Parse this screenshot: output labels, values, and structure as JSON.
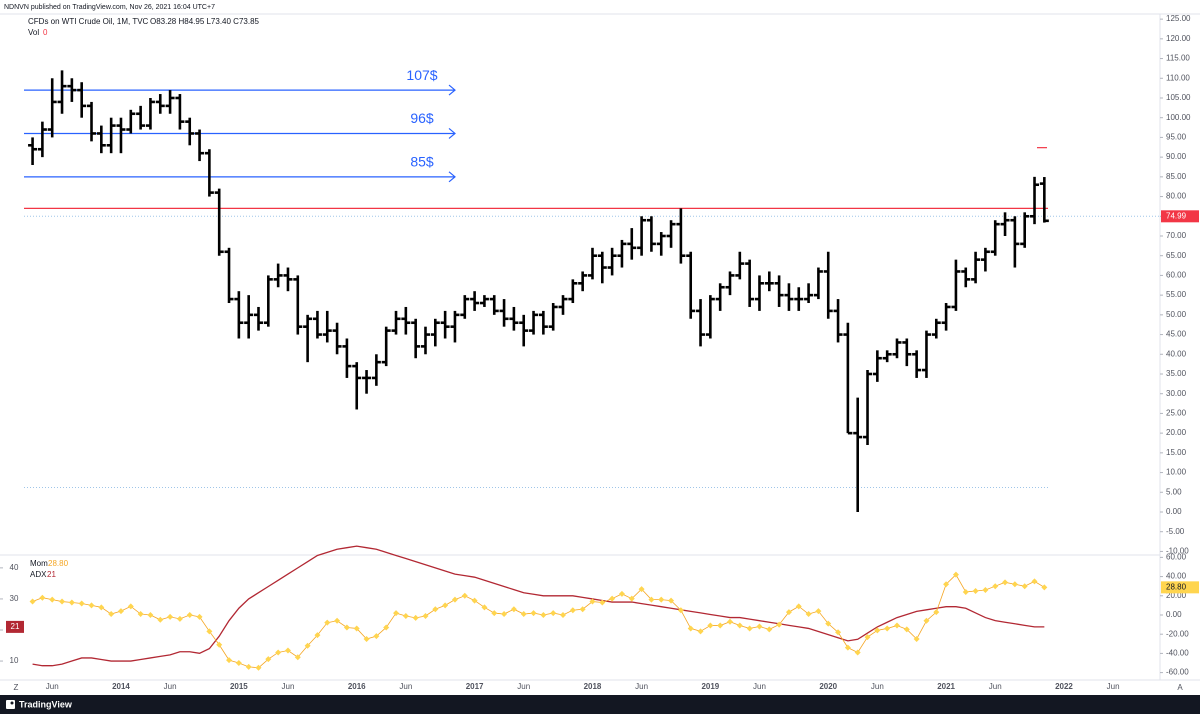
{
  "header": {
    "published": "NDNVN published on TradingView.com, Nov 26, 2021 16:04 UTC+7",
    "footer": "TradingView",
    "corner_left": "Z",
    "corner_right": "A"
  },
  "chart_data": [
    {
      "type": "ohlc",
      "title": "CFDs on WTI Crude Oil, 1M, TVC",
      "ohlc_readout": "O83.28 H84.95 L73.40 C73.85",
      "volume_label": "Vol",
      "volume_value": 0,
      "color": "#000000",
      "x": [
        "2013-04",
        "2013-05",
        "2013-06",
        "2013-07",
        "2013-08",
        "2013-09",
        "2013-10",
        "2013-11",
        "2013-12",
        "2014-01",
        "2014-02",
        "2014-03",
        "2014-04",
        "2014-05",
        "2014-06",
        "2014-07",
        "2014-08",
        "2014-09",
        "2014-10",
        "2014-11",
        "2014-12",
        "2015-01",
        "2015-02",
        "2015-03",
        "2015-04",
        "2015-05",
        "2015-06",
        "2015-07",
        "2015-08",
        "2015-09",
        "2015-10",
        "2015-11",
        "2015-12",
        "2016-01",
        "2016-02",
        "2016-03",
        "2016-04",
        "2016-05",
        "2016-06",
        "2016-07",
        "2016-08",
        "2016-09",
        "2016-10",
        "2016-11",
        "2016-12",
        "2017-01",
        "2017-02",
        "2017-03",
        "2017-04",
        "2017-05",
        "2017-06",
        "2017-07",
        "2017-08",
        "2017-09",
        "2017-10",
        "2017-11",
        "2017-12",
        "2018-01",
        "2018-02",
        "2018-03",
        "2018-04",
        "2018-05",
        "2018-06",
        "2018-07",
        "2018-08",
        "2018-09",
        "2018-10",
        "2018-11",
        "2018-12",
        "2019-01",
        "2019-02",
        "2019-03",
        "2019-04",
        "2019-05",
        "2019-06",
        "2019-07",
        "2019-08",
        "2019-09",
        "2019-10",
        "2019-11",
        "2019-12",
        "2020-01",
        "2020-02",
        "2020-03",
        "2020-04",
        "2020-05",
        "2020-06",
        "2020-07",
        "2020-08",
        "2020-09",
        "2020-10",
        "2020-11",
        "2020-12",
        "2021-01",
        "2021-02",
        "2021-03",
        "2021-04",
        "2021-05",
        "2021-06",
        "2021-07",
        "2021-08",
        "2021-09",
        "2021-10",
        "2021-11"
      ],
      "open": [
        93,
        92,
        97,
        104,
        108,
        107,
        103,
        96,
        93,
        98,
        97,
        101,
        98,
        104,
        103,
        105,
        99,
        96,
        91,
        81,
        66,
        54,
        48,
        50,
        48,
        59,
        60,
        59,
        47,
        49,
        45,
        46,
        42,
        37,
        34,
        34,
        38,
        46,
        49,
        48,
        42,
        45,
        48,
        47,
        50,
        54,
        53,
        54,
        51,
        49,
        48,
        46,
        50,
        47,
        52,
        54,
        58,
        60,
        65,
        62,
        65,
        68,
        67,
        74,
        68,
        70,
        73,
        65,
        51,
        45,
        54,
        57,
        60,
        63,
        54,
        58,
        58,
        55,
        54,
        54,
        55,
        61,
        51,
        45,
        20,
        19,
        35,
        39,
        40,
        43,
        40,
        36,
        45,
        48,
        52,
        61,
        59,
        64,
        66,
        73,
        74,
        68,
        75,
        83.28
      ],
      "high": [
        95,
        99,
        110,
        112,
        110,
        109,
        104,
        98,
        100,
        100,
        102,
        103,
        105,
        106,
        107,
        106,
        100,
        97,
        92,
        82,
        67,
        56,
        55,
        52,
        60,
        63,
        62,
        60,
        50,
        51,
        51,
        48,
        44,
        38,
        36,
        40,
        47,
        51,
        52,
        49,
        47,
        49,
        51,
        51,
        55,
        56,
        55,
        55,
        54,
        52,
        50,
        51,
        51,
        53,
        55,
        59,
        61,
        67,
        66,
        67,
        69,
        72,
        75,
        75,
        71,
        74,
        77,
        66,
        54,
        55,
        58,
        61,
        66,
        64,
        60,
        61,
        60,
        58,
        57,
        58,
        62,
        66,
        54,
        48,
        29,
        36,
        41,
        41,
        44,
        44,
        41,
        46,
        49,
        53,
        64,
        62,
        66,
        67,
        74,
        76,
        75,
        76,
        85,
        84.95
      ],
      "low": [
        88,
        90,
        95,
        101,
        104,
        100,
        94,
        91,
        91,
        91,
        96,
        97,
        97,
        101,
        101,
        97,
        93,
        89,
        80,
        65,
        53,
        44,
        44,
        46,
        47,
        57,
        56,
        45,
        38,
        44,
        43,
        40,
        34,
        26,
        30,
        32,
        37,
        45,
        45,
        39,
        40,
        42,
        44,
        43,
        49,
        51,
        52,
        50,
        47,
        46,
        42,
        45,
        45,
        46,
        50,
        53,
        56,
        59,
        58,
        60,
        62,
        64,
        65,
        66,
        65,
        67,
        63,
        49,
        42,
        44,
        51,
        55,
        59,
        52,
        51,
        56,
        52,
        51,
        51,
        53,
        54,
        49,
        43,
        20,
        0,
        17,
        33,
        38,
        39,
        37,
        34,
        34,
        44,
        46,
        51,
        57,
        58,
        61,
        65,
        70,
        62,
        67,
        73,
        73.4
      ],
      "close": [
        92,
        97,
        104,
        108,
        107,
        103,
        96,
        93,
        98,
        97,
        101,
        98,
        104,
        103,
        105,
        99,
        96,
        91,
        81,
        66,
        54,
        48,
        50,
        48,
        59,
        60,
        59,
        47,
        49,
        45,
        46,
        42,
        37,
        34,
        34,
        38,
        46,
        49,
        48,
        42,
        45,
        48,
        47,
        50,
        54,
        53,
        54,
        51,
        49,
        48,
        46,
        50,
        47,
        52,
        54,
        58,
        60,
        65,
        62,
        65,
        68,
        67,
        74,
        68,
        70,
        73,
        65,
        51,
        45,
        54,
        57,
        60,
        63,
        54,
        58,
        58,
        55,
        54,
        54,
        55,
        61,
        51,
        45,
        20,
        19,
        35,
        39,
        40,
        43,
        40,
        36,
        45,
        48,
        52,
        61,
        59,
        64,
        66,
        73,
        74,
        68,
        75,
        83,
        73.85
      ],
      "ylim": [
        -10.4,
        126.3
      ],
      "yticks": [
        {
          "value": 125,
          "label": "125.00"
        },
        {
          "value": 120,
          "label": "120.00"
        },
        {
          "value": 115,
          "label": "115.00"
        },
        {
          "value": 110,
          "label": "110.00"
        },
        {
          "value": 105,
          "label": "105.00"
        },
        {
          "value": 100,
          "label": "100.00"
        },
        {
          "value": 95,
          "label": "95.00"
        },
        {
          "value": 90,
          "label": "90.00"
        },
        {
          "value": 85,
          "label": "85.00"
        },
        {
          "value": 80,
          "label": "80.00"
        },
        {
          "value": 75,
          "label": "75.00"
        },
        {
          "value": 70,
          "label": "70.00"
        },
        {
          "value": 65,
          "label": "65.00"
        },
        {
          "value": 60,
          "label": "60.00"
        },
        {
          "value": 55,
          "label": "55.00"
        },
        {
          "value": 50,
          "label": "50.00"
        },
        {
          "value": 45,
          "label": "45.00"
        },
        {
          "value": 40,
          "label": "40.00"
        },
        {
          "value": 35,
          "label": "35.00"
        },
        {
          "value": 30,
          "label": "30.00"
        },
        {
          "value": 25,
          "label": "25.00"
        },
        {
          "value": 20,
          "label": "20.00"
        },
        {
          "value": 15,
          "label": "15.00"
        },
        {
          "value": 10,
          "label": "10.00"
        },
        {
          "value": 5,
          "label": "5.00"
        },
        {
          "value": 0,
          "label": "0.00"
        },
        {
          "value": -5,
          "label": "-5.00"
        },
        {
          "value": -10,
          "label": "-10.00"
        }
      ],
      "xticks": [
        {
          "value": "2013-06",
          "label": "Jun"
        },
        {
          "value": "2014-01",
          "label": "2014"
        },
        {
          "value": "2014-06",
          "label": "Jun"
        },
        {
          "value": "2015-01",
          "label": "2015"
        },
        {
          "value": "2015-06",
          "label": "Jun"
        },
        {
          "value": "2016-01",
          "label": "2016"
        },
        {
          "value": "2016-06",
          "label": "Jun"
        },
        {
          "value": "2017-01",
          "label": "2017"
        },
        {
          "value": "2017-06",
          "label": "Jun"
        },
        {
          "value": "2018-01",
          "label": "2018"
        },
        {
          "value": "2018-06",
          "label": "Jun"
        },
        {
          "value": "2019-01",
          "label": "2019"
        },
        {
          "value": "2019-06",
          "label": "Jun"
        },
        {
          "value": "2020-01",
          "label": "2020"
        },
        {
          "value": "2020-06",
          "label": "Jun"
        },
        {
          "value": "2021-01",
          "label": "2021"
        },
        {
          "value": "2021-06",
          "label": "Jun"
        },
        {
          "value": "2022-01",
          "label": "2022"
        },
        {
          "value": "2022-06",
          "label": "Jun"
        }
      ],
      "hlines": [
        {
          "value": 107,
          "label": "107$",
          "color": "#2962ff"
        },
        {
          "value": 96,
          "label": "96$",
          "color": "#2962ff"
        },
        {
          "value": 85,
          "label": "85$",
          "color": "#2962ff"
        }
      ],
      "resistance": {
        "value": 77,
        "color": "#f23645"
      },
      "last_price": 74.99,
      "last_price_color": "#f23645",
      "dotted_lines": [
        6.2
      ],
      "marker": {
        "value": 92.4,
        "color": "#f23645"
      }
    },
    {
      "type": "line",
      "series": [
        {
          "name": "Mom",
          "color": "#f5a623",
          "axis": "y2",
          "last_label": "28.80",
          "values": [
            14,
            18,
            16,
            14,
            13,
            12,
            10,
            8,
            1,
            4,
            9,
            1,
            0,
            -5,
            -2,
            -4,
            0,
            -2,
            -17,
            -31,
            -47,
            -50,
            -54,
            -55,
            -46,
            -39,
            -37,
            -44,
            -32,
            -21,
            -8,
            -6,
            -13,
            -14,
            -25,
            -22,
            -13,
            2,
            -1,
            -3,
            -1,
            6,
            10,
            16,
            20,
            15,
            8,
            2,
            1,
            6,
            1,
            2,
            0,
            2,
            0,
            5,
            6,
            14,
            13,
            17,
            22,
            17,
            27,
            16,
            16,
            15,
            5,
            -14,
            -17,
            -11,
            -11,
            -7,
            -11,
            -14,
            -12,
            -15,
            -10,
            3,
            9,
            1,
            4,
            -9,
            -18,
            -34,
            -39,
            -23,
            -16,
            -14,
            -11,
            -15,
            -25,
            -6,
            3,
            32,
            42,
            24,
            25,
            26,
            30,
            34,
            32,
            30,
            35,
            28.8
          ]
        },
        {
          "name": "ADX",
          "color": "#b22833",
          "values": [
            9,
            8.5,
            8.5,
            9,
            10,
            11,
            11,
            10.5,
            10,
            10,
            10,
            10.5,
            11,
            11.5,
            12,
            13,
            13,
            12.5,
            14,
            18,
            23,
            27,
            30,
            32,
            34,
            36,
            38,
            40,
            42,
            44,
            45,
            46,
            46.5,
            47,
            46.5,
            46,
            45,
            44,
            43,
            42,
            41,
            40,
            39,
            38,
            37.5,
            37,
            36,
            35,
            34,
            33,
            32,
            31.5,
            31,
            31,
            31,
            31,
            30.5,
            30,
            29.5,
            29,
            29,
            29,
            28.5,
            28,
            27.5,
            27,
            26.5,
            26,
            25.5,
            25,
            24.5,
            24,
            24,
            23.5,
            23,
            22.5,
            22,
            21.5,
            21,
            20.5,
            19.5,
            18.5,
            17.5,
            16.5,
            17,
            19,
            21,
            22.5,
            24,
            25,
            26,
            26.5,
            27,
            27.5,
            27.5,
            27,
            25.5,
            24,
            23,
            22.5,
            22,
            21.5,
            21,
            21
          ]
        }
      ],
      "ylim": [
        3.9,
        43.5
      ],
      "yticks": [
        10,
        20,
        30,
        40
      ],
      "y2lim": [
        -67.7,
        60.4
      ],
      "y2ticks": [
        {
          "value": 60,
          "label": "60.00"
        },
        {
          "value": 40,
          "label": "40.00"
        },
        {
          "value": 20,
          "label": "20.00"
        },
        {
          "value": 0,
          "label": "0.00"
        },
        {
          "value": -20,
          "label": "-20.00"
        },
        {
          "value": -40,
          "label": "-40.00"
        },
        {
          "value": -60,
          "label": "-60.00"
        }
      ]
    }
  ]
}
